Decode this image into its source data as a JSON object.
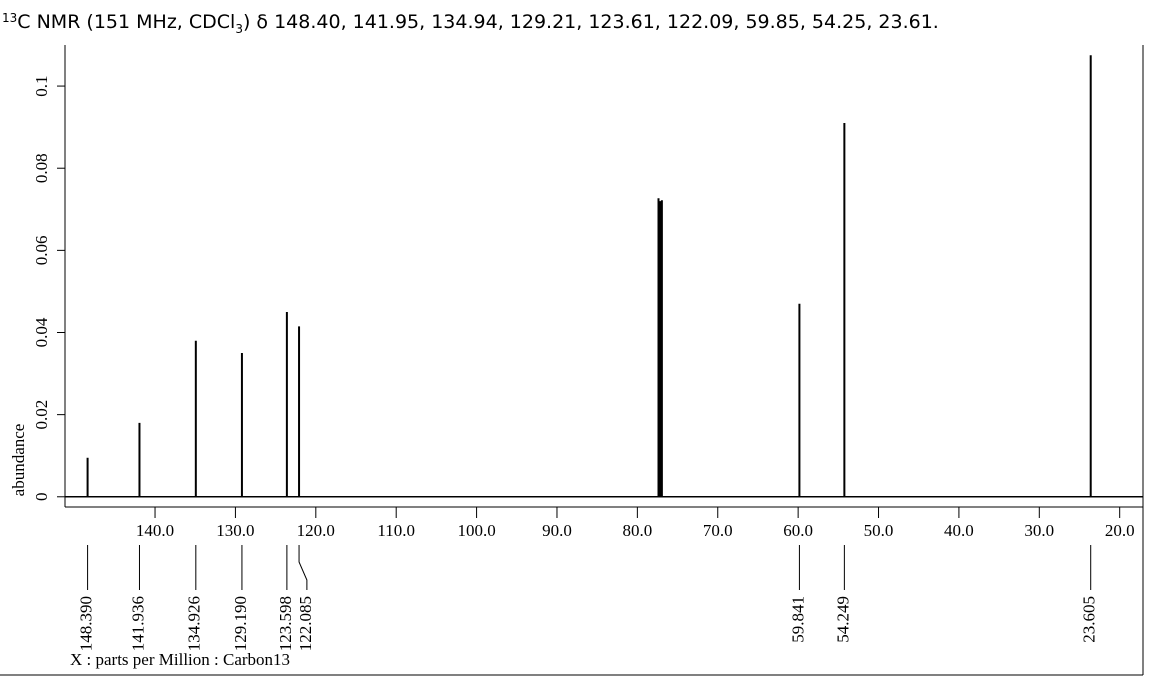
{
  "chart_data": {
    "type": "spectrum",
    "title": {
      "sup": "13",
      "pre": "C NMR (151 MHz, CDCl",
      "sub": "3",
      "post": ") δ 148.40, 141.95, 134.94, 129.21, 123.61, 122.09, 59.85, 54.25, 23.61."
    },
    "x_label": "X : parts per Million : Carbon13",
    "y_label": "abundance",
    "x": [
      148.39,
      141.936,
      134.926,
      129.19,
      123.598,
      122.085,
      77.37,
      77.16,
      76.95,
      59.841,
      54.249,
      23.605
    ],
    "x_labels": [
      "148.390",
      "141.936",
      "134.926",
      "129.190",
      "123.598",
      "122.085",
      null,
      null,
      null,
      "59.841",
      "54.249",
      "23.605"
    ],
    "values": [
      0.0095,
      0.018,
      0.038,
      0.035,
      0.045,
      0.0415,
      0.0727,
      0.072,
      0.0722,
      0.047,
      0.091,
      0.1075
    ],
    "color": "#000000",
    "xlim": [
      151.2,
      17.1
    ],
    "ylim": [
      -0.002,
      0.11
    ],
    "xticks": [
      {
        "value": 140,
        "label": "140.0"
      },
      {
        "value": 130,
        "label": "130.0"
      },
      {
        "value": 120,
        "label": "120.0"
      },
      {
        "value": 110,
        "label": "110.0"
      },
      {
        "value": 100,
        "label": "100.0"
      },
      {
        "value": 90,
        "label": "90.0"
      },
      {
        "value": 80,
        "label": "80.0"
      },
      {
        "value": 70,
        "label": "70.0"
      },
      {
        "value": 60,
        "label": "60.0"
      },
      {
        "value": 50,
        "label": "50.0"
      },
      {
        "value": 40,
        "label": "40.0"
      },
      {
        "value": 30,
        "label": "30.0"
      },
      {
        "value": 20,
        "label": "20.0"
      }
    ],
    "yticks": [
      0,
      0.02,
      0.04,
      0.06,
      0.08,
      0.1
    ]
  }
}
